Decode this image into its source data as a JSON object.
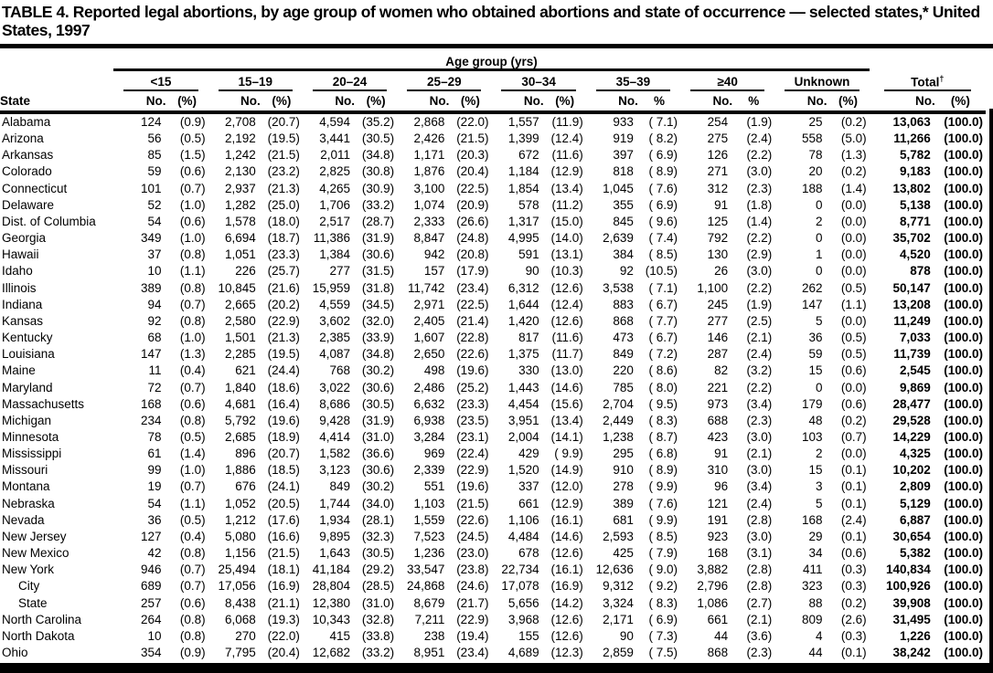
{
  "title": "TABLE 4. Reported legal abortions, by age group of women who obtained abortions and state of occurrence — selected states,* United States, 1997",
  "table": {
    "span_header": "Age group (yrs)",
    "state_header": "State",
    "groups": [
      {
        "label": "<15",
        "no": "No.",
        "pct": "(%)"
      },
      {
        "label": "15–19",
        "no": "No.",
        "pct": "(%)"
      },
      {
        "label": "20–24",
        "no": "No.",
        "pct": "(%)"
      },
      {
        "label": "25–29",
        "no": "No.",
        "pct": "(%)"
      },
      {
        "label": "30–34",
        "no": "No.",
        "pct": "(%)"
      },
      {
        "label": "35–39",
        "no": "No.",
        "pct": "%"
      },
      {
        "label": "≥40",
        "no": "No.",
        "pct": "%"
      },
      {
        "label": "Unknown",
        "no": "No.",
        "pct": "(%)"
      }
    ],
    "total": {
      "label": "Total",
      "sup": "†",
      "no": "No.",
      "pct": "(%)"
    },
    "rows": [
      {
        "state": "Alabama",
        "indent": false,
        "values": [
          "124",
          "(0.9)",
          "2,708",
          "(20.7)",
          "4,594",
          "(35.2)",
          "2,868",
          "(22.0)",
          "1,557",
          "(11.9)",
          "933",
          "( 7.1)",
          "254",
          "(1.9)",
          "25",
          "(0.2)",
          "13,063",
          "(100.0)"
        ]
      },
      {
        "state": "Arizona",
        "indent": false,
        "values": [
          "56",
          "(0.5)",
          "2,192",
          "(19.5)",
          "3,441",
          "(30.5)",
          "2,426",
          "(21.5)",
          "1,399",
          "(12.4)",
          "919",
          "( 8.2)",
          "275",
          "(2.4)",
          "558",
          "(5.0)",
          "11,266",
          "(100.0)"
        ]
      },
      {
        "state": "Arkansas",
        "indent": false,
        "values": [
          "85",
          "(1.5)",
          "1,242",
          "(21.5)",
          "2,011",
          "(34.8)",
          "1,171",
          "(20.3)",
          "672",
          "(11.6)",
          "397",
          "( 6.9)",
          "126",
          "(2.2)",
          "78",
          "(1.3)",
          "5,782",
          "(100.0)"
        ]
      },
      {
        "state": "Colorado",
        "indent": false,
        "values": [
          "59",
          "(0.6)",
          "2,130",
          "(23.2)",
          "2,825",
          "(30.8)",
          "1,876",
          "(20.4)",
          "1,184",
          "(12.9)",
          "818",
          "( 8.9)",
          "271",
          "(3.0)",
          "20",
          "(0.2)",
          "9,183",
          "(100.0)"
        ]
      },
      {
        "state": "Connecticut",
        "indent": false,
        "values": [
          "101",
          "(0.7)",
          "2,937",
          "(21.3)",
          "4,265",
          "(30.9)",
          "3,100",
          "(22.5)",
          "1,854",
          "(13.4)",
          "1,045",
          "( 7.6)",
          "312",
          "(2.3)",
          "188",
          "(1.4)",
          "13,802",
          "(100.0)"
        ]
      },
      {
        "state": "Delaware",
        "indent": false,
        "values": [
          "52",
          "(1.0)",
          "1,282",
          "(25.0)",
          "1,706",
          "(33.2)",
          "1,074",
          "(20.9)",
          "578",
          "(11.2)",
          "355",
          "( 6.9)",
          "91",
          "(1.8)",
          "0",
          "(0.0)",
          "5,138",
          "(100.0)"
        ]
      },
      {
        "state": "Dist. of Columbia",
        "indent": false,
        "values": [
          "54",
          "(0.6)",
          "1,578",
          "(18.0)",
          "2,517",
          "(28.7)",
          "2,333",
          "(26.6)",
          "1,317",
          "(15.0)",
          "845",
          "( 9.6)",
          "125",
          "(1.4)",
          "2",
          "(0.0)",
          "8,771",
          "(100.0)"
        ]
      },
      {
        "state": "Georgia",
        "indent": false,
        "values": [
          "349",
          "(1.0)",
          "6,694",
          "(18.7)",
          "11,386",
          "(31.9)",
          "8,847",
          "(24.8)",
          "4,995",
          "(14.0)",
          "2,639",
          "( 7.4)",
          "792",
          "(2.2)",
          "0",
          "(0.0)",
          "35,702",
          "(100.0)"
        ]
      },
      {
        "state": "Hawaii",
        "indent": false,
        "values": [
          "37",
          "(0.8)",
          "1,051",
          "(23.3)",
          "1,384",
          "(30.6)",
          "942",
          "(20.8)",
          "591",
          "(13.1)",
          "384",
          "( 8.5)",
          "130",
          "(2.9)",
          "1",
          "(0.0)",
          "4,520",
          "(100.0)"
        ]
      },
      {
        "state": "Idaho",
        "indent": false,
        "values": [
          "10",
          "(1.1)",
          "226",
          "(25.7)",
          "277",
          "(31.5)",
          "157",
          "(17.9)",
          "90",
          "(10.3)",
          "92",
          "(10.5)",
          "26",
          "(3.0)",
          "0",
          "(0.0)",
          "878",
          "(100.0)"
        ]
      },
      {
        "state": "Illinois",
        "indent": false,
        "values": [
          "389",
          "(0.8)",
          "10,845",
          "(21.6)",
          "15,959",
          "(31.8)",
          "11,742",
          "(23.4)",
          "6,312",
          "(12.6)",
          "3,538",
          "( 7.1)",
          "1,100",
          "(2.2)",
          "262",
          "(0.5)",
          "50,147",
          "(100.0)"
        ]
      },
      {
        "state": "Indiana",
        "indent": false,
        "values": [
          "94",
          "(0.7)",
          "2,665",
          "(20.2)",
          "4,559",
          "(34.5)",
          "2,971",
          "(22.5)",
          "1,644",
          "(12.4)",
          "883",
          "( 6.7)",
          "245",
          "(1.9)",
          "147",
          "(1.1)",
          "13,208",
          "(100.0)"
        ]
      },
      {
        "state": "Kansas",
        "indent": false,
        "values": [
          "92",
          "(0.8)",
          "2,580",
          "(22.9)",
          "3,602",
          "(32.0)",
          "2,405",
          "(21.4)",
          "1,420",
          "(12.6)",
          "868",
          "( 7.7)",
          "277",
          "(2.5)",
          "5",
          "(0.0)",
          "11,249",
          "(100.0)"
        ]
      },
      {
        "state": "Kentucky",
        "indent": false,
        "values": [
          "68",
          "(1.0)",
          "1,501",
          "(21.3)",
          "2,385",
          "(33.9)",
          "1,607",
          "(22.8)",
          "817",
          "(11.6)",
          "473",
          "( 6.7)",
          "146",
          "(2.1)",
          "36",
          "(0.5)",
          "7,033",
          "(100.0)"
        ]
      },
      {
        "state": "Louisiana",
        "indent": false,
        "values": [
          "147",
          "(1.3)",
          "2,285",
          "(19.5)",
          "4,087",
          "(34.8)",
          "2,650",
          "(22.6)",
          "1,375",
          "(11.7)",
          "849",
          "( 7.2)",
          "287",
          "(2.4)",
          "59",
          "(0.5)",
          "11,739",
          "(100.0)"
        ]
      },
      {
        "state": "Maine",
        "indent": false,
        "values": [
          "11",
          "(0.4)",
          "621",
          "(24.4)",
          "768",
          "(30.2)",
          "498",
          "(19.6)",
          "330",
          "(13.0)",
          "220",
          "( 8.6)",
          "82",
          "(3.2)",
          "15",
          "(0.6)",
          "2,545",
          "(100.0)"
        ]
      },
      {
        "state": "Maryland",
        "indent": false,
        "values": [
          "72",
          "(0.7)",
          "1,840",
          "(18.6)",
          "3,022",
          "(30.6)",
          "2,486",
          "(25.2)",
          "1,443",
          "(14.6)",
          "785",
          "( 8.0)",
          "221",
          "(2.2)",
          "0",
          "(0.0)",
          "9,869",
          "(100.0)"
        ]
      },
      {
        "state": "Massachusetts",
        "indent": false,
        "values": [
          "168",
          "(0.6)",
          "4,681",
          "(16.4)",
          "8,686",
          "(30.5)",
          "6,632",
          "(23.3)",
          "4,454",
          "(15.6)",
          "2,704",
          "( 9.5)",
          "973",
          "(3.4)",
          "179",
          "(0.6)",
          "28,477",
          "(100.0)"
        ]
      },
      {
        "state": "Michigan",
        "indent": false,
        "values": [
          "234",
          "(0.8)",
          "5,792",
          "(19.6)",
          "9,428",
          "(31.9)",
          "6,938",
          "(23.5)",
          "3,951",
          "(13.4)",
          "2,449",
          "( 8.3)",
          "688",
          "(2.3)",
          "48",
          "(0.2)",
          "29,528",
          "(100.0)"
        ]
      },
      {
        "state": "Minnesota",
        "indent": false,
        "values": [
          "78",
          "(0.5)",
          "2,685",
          "(18.9)",
          "4,414",
          "(31.0)",
          "3,284",
          "(23.1)",
          "2,004",
          "(14.1)",
          "1,238",
          "( 8.7)",
          "423",
          "(3.0)",
          "103",
          "(0.7)",
          "14,229",
          "(100.0)"
        ]
      },
      {
        "state": "Mississippi",
        "indent": false,
        "values": [
          "61",
          "(1.4)",
          "896",
          "(20.7)",
          "1,582",
          "(36.6)",
          "969",
          "(22.4)",
          "429",
          "( 9.9)",
          "295",
          "( 6.8)",
          "91",
          "(2.1)",
          "2",
          "(0.0)",
          "4,325",
          "(100.0)"
        ]
      },
      {
        "state": "Missouri",
        "indent": false,
        "values": [
          "99",
          "(1.0)",
          "1,886",
          "(18.5)",
          "3,123",
          "(30.6)",
          "2,339",
          "(22.9)",
          "1,520",
          "(14.9)",
          "910",
          "( 8.9)",
          "310",
          "(3.0)",
          "15",
          "(0.1)",
          "10,202",
          "(100.0)"
        ]
      },
      {
        "state": "Montana",
        "indent": false,
        "values": [
          "19",
          "(0.7)",
          "676",
          "(24.1)",
          "849",
          "(30.2)",
          "551",
          "(19.6)",
          "337",
          "(12.0)",
          "278",
          "( 9.9)",
          "96",
          "(3.4)",
          "3",
          "(0.1)",
          "2,809",
          "(100.0)"
        ]
      },
      {
        "state": "Nebraska",
        "indent": false,
        "values": [
          "54",
          "(1.1)",
          "1,052",
          "(20.5)",
          "1,744",
          "(34.0)",
          "1,103",
          "(21.5)",
          "661",
          "(12.9)",
          "389",
          "( 7.6)",
          "121",
          "(2.4)",
          "5",
          "(0.1)",
          "5,129",
          "(100.0)"
        ]
      },
      {
        "state": "Nevada",
        "indent": false,
        "values": [
          "36",
          "(0.5)",
          "1,212",
          "(17.6)",
          "1,934",
          "(28.1)",
          "1,559",
          "(22.6)",
          "1,106",
          "(16.1)",
          "681",
          "( 9.9)",
          "191",
          "(2.8)",
          "168",
          "(2.4)",
          "6,887",
          "(100.0)"
        ]
      },
      {
        "state": "New Jersey",
        "indent": false,
        "values": [
          "127",
          "(0.4)",
          "5,080",
          "(16.6)",
          "9,895",
          "(32.3)",
          "7,523",
          "(24.5)",
          "4,484",
          "(14.6)",
          "2,593",
          "( 8.5)",
          "923",
          "(3.0)",
          "29",
          "(0.1)",
          "30,654",
          "(100.0)"
        ]
      },
      {
        "state": "New Mexico",
        "indent": false,
        "values": [
          "42",
          "(0.8)",
          "1,156",
          "(21.5)",
          "1,643",
          "(30.5)",
          "1,236",
          "(23.0)",
          "678",
          "(12.6)",
          "425",
          "( 7.9)",
          "168",
          "(3.1)",
          "34",
          "(0.6)",
          "5,382",
          "(100.0)"
        ]
      },
      {
        "state": "New York",
        "indent": false,
        "values": [
          "946",
          "(0.7)",
          "25,494",
          "(18.1)",
          "41,184",
          "(29.2)",
          "33,547",
          "(23.8)",
          "22,734",
          "(16.1)",
          "12,636",
          "( 9.0)",
          "3,882",
          "(2.8)",
          "411",
          "(0.3)",
          "140,834",
          "(100.0)"
        ]
      },
      {
        "state": "City",
        "indent": true,
        "values": [
          "689",
          "(0.7)",
          "17,056",
          "(16.9)",
          "28,804",
          "(28.5)",
          "24,868",
          "(24.6)",
          "17,078",
          "(16.9)",
          "9,312",
          "( 9.2)",
          "2,796",
          "(2.8)",
          "323",
          "(0.3)",
          "100,926",
          "(100.0)"
        ]
      },
      {
        "state": "State",
        "indent": true,
        "values": [
          "257",
          "(0.6)",
          "8,438",
          "(21.1)",
          "12,380",
          "(31.0)",
          "8,679",
          "(21.7)",
          "5,656",
          "(14.2)",
          "3,324",
          "( 8.3)",
          "1,086",
          "(2.7)",
          "88",
          "(0.2)",
          "39,908",
          "(100.0)"
        ]
      },
      {
        "state": "North Carolina",
        "indent": false,
        "values": [
          "264",
          "(0.8)",
          "6,068",
          "(19.3)",
          "10,343",
          "(32.8)",
          "7,211",
          "(22.9)",
          "3,968",
          "(12.6)",
          "2,171",
          "( 6.9)",
          "661",
          "(2.1)",
          "809",
          "(2.6)",
          "31,495",
          "(100.0)"
        ]
      },
      {
        "state": "North Dakota",
        "indent": false,
        "values": [
          "10",
          "(0.8)",
          "270",
          "(22.0)",
          "415",
          "(33.8)",
          "238",
          "(19.4)",
          "155",
          "(12.6)",
          "90",
          "( 7.3)",
          "44",
          "(3.6)",
          "4",
          "(0.3)",
          "1,226",
          "(100.0)"
        ]
      },
      {
        "state": "Ohio",
        "indent": false,
        "values": [
          "354",
          "(0.9)",
          "7,795",
          "(20.4)",
          "12,682",
          "(33.2)",
          "8,951",
          "(23.4)",
          "4,689",
          "(12.3)",
          "2,859",
          "( 7.5)",
          "868",
          "(2.3)",
          "44",
          "(0.1)",
          "38,242",
          "(100.0)"
        ]
      }
    ]
  }
}
